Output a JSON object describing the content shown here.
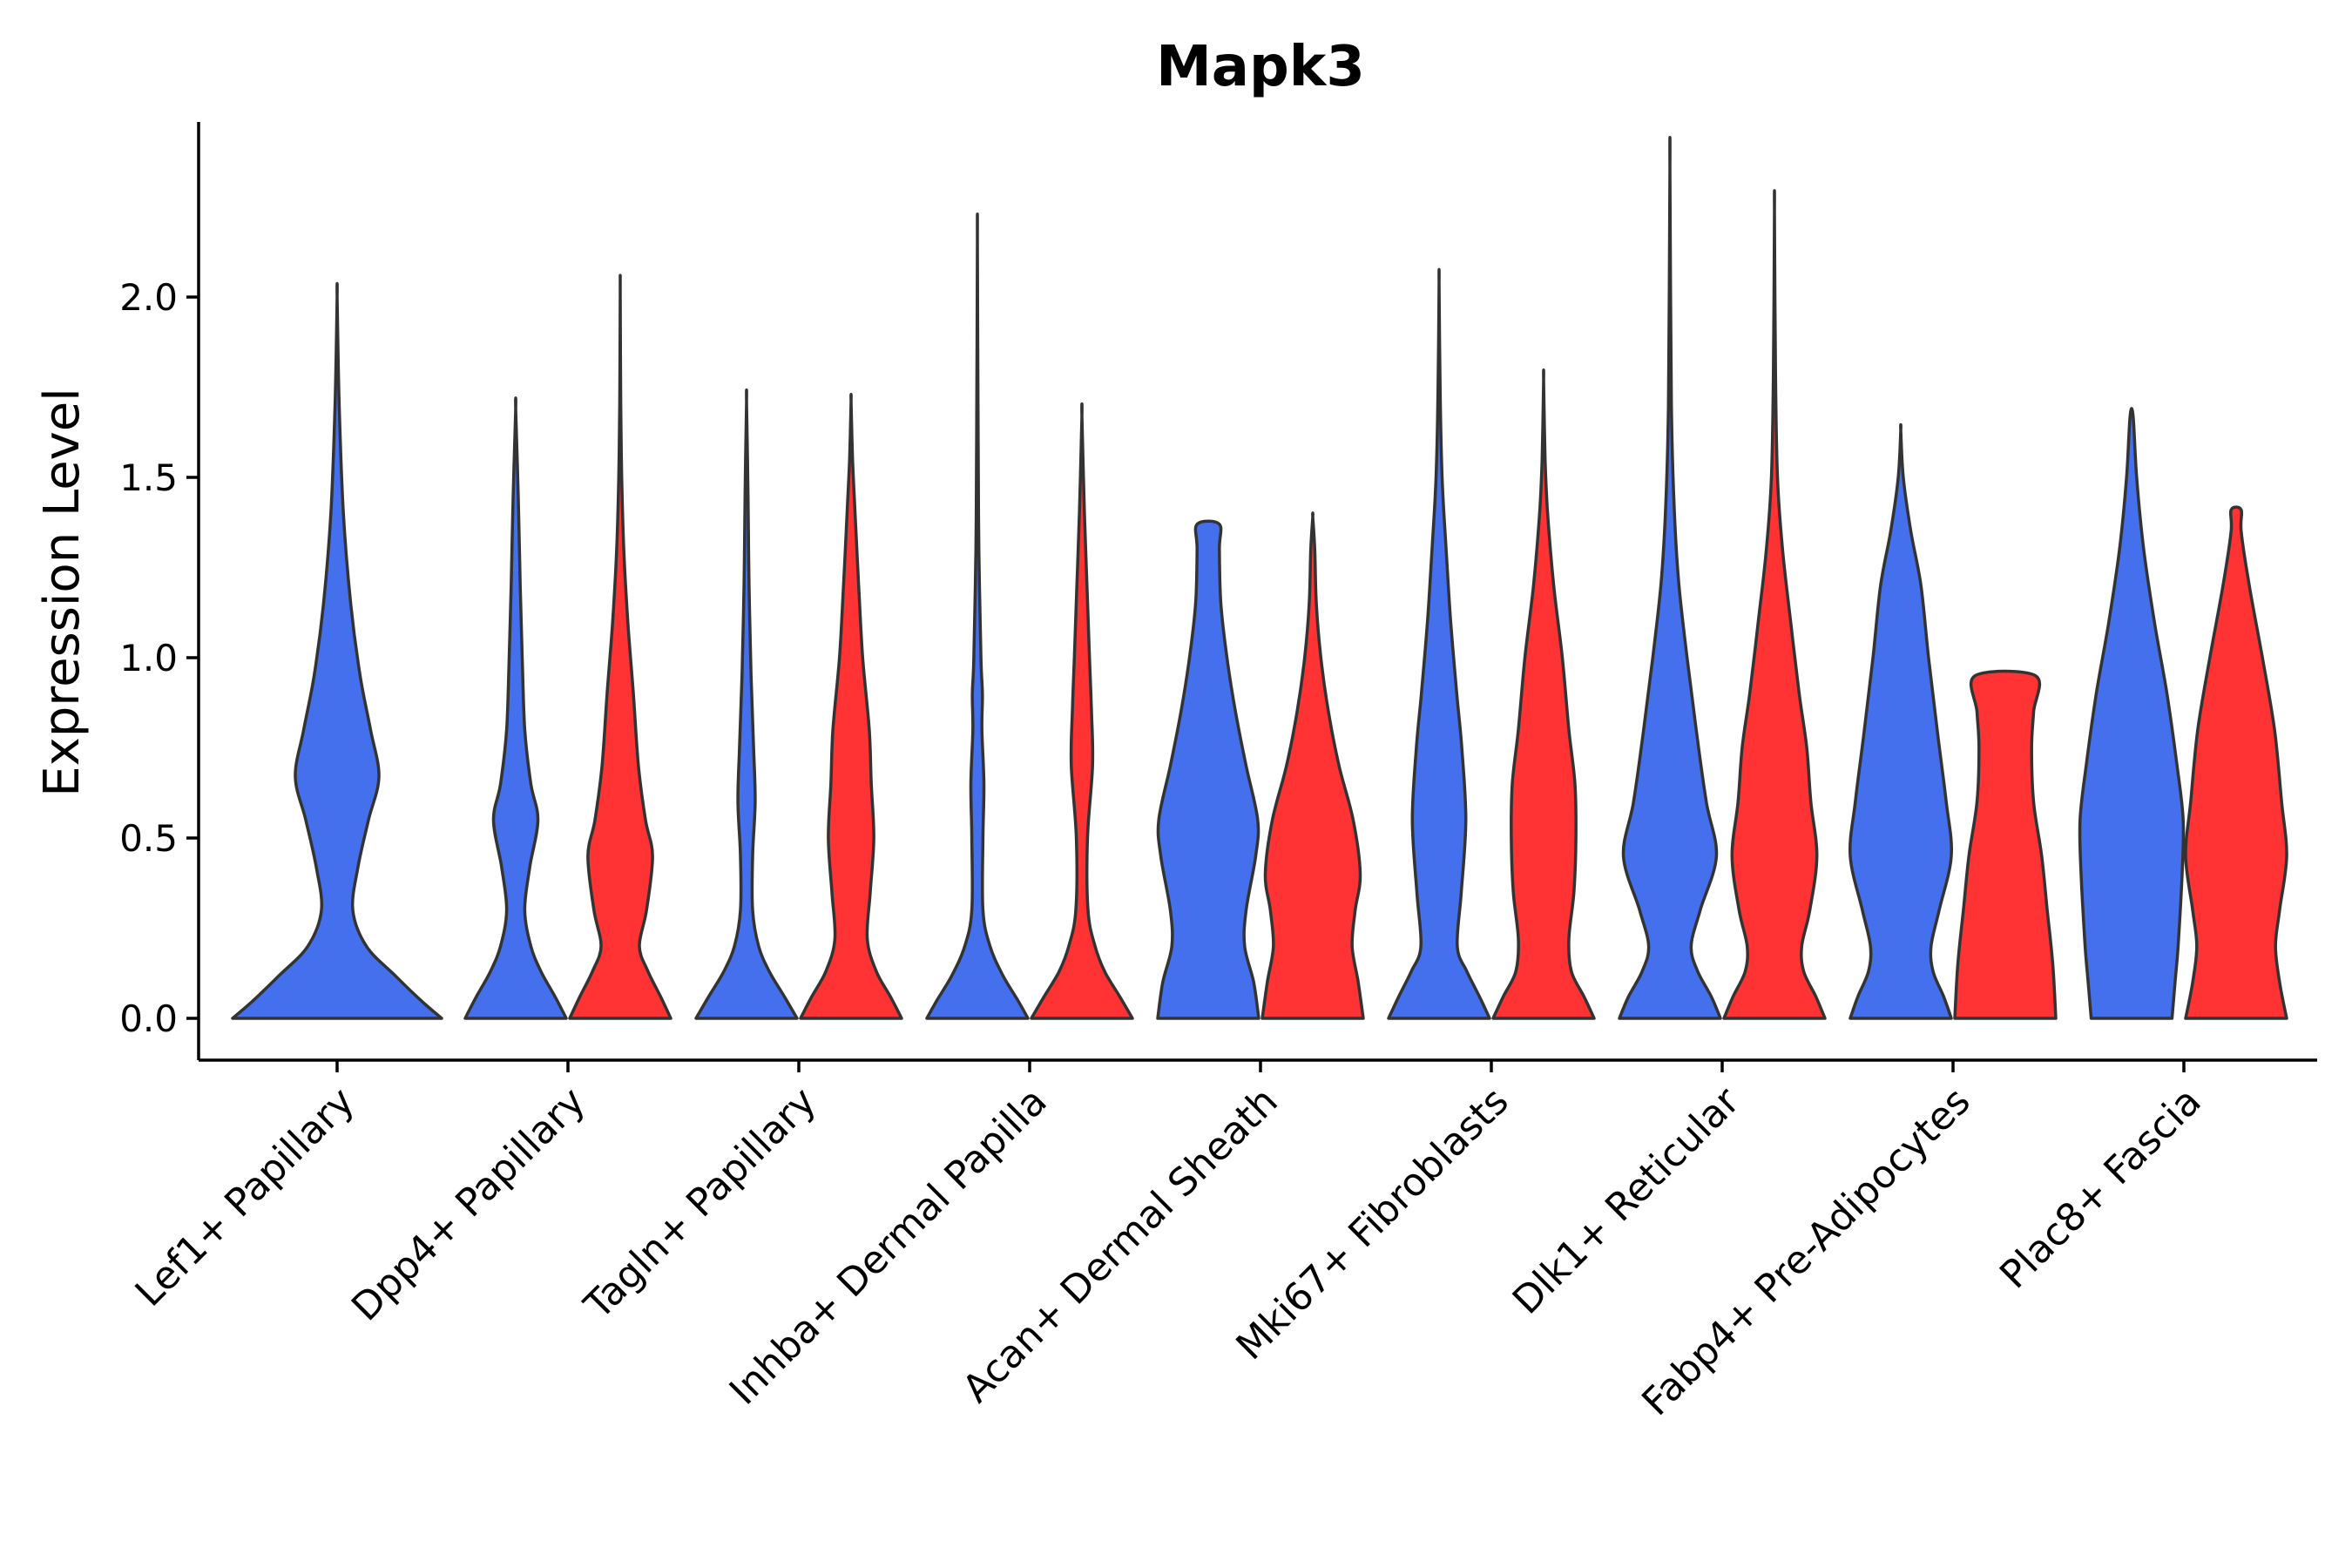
{
  "chart_data": {
    "type": "violin",
    "title": "Mapk3",
    "ylabel": "Expression Level",
    "xlabel": "",
    "ylim": [
      -0.12,
      2.5
    ],
    "yticks": [
      0.0,
      0.5,
      1.0,
      1.5,
      2.0
    ],
    "ytick_labels": [
      "0.0",
      "0.5",
      "1.0",
      "1.5",
      "2.0"
    ],
    "grid": false,
    "legend": "none",
    "colors": [
      "#4470ED",
      "#FF3333"
    ],
    "categories": [
      "Lef1+ Papillary",
      "Dpp4+ Papillary",
      "Tagln+ Papillary",
      "Inhba+ Dermal Papilla",
      "Acan+ Dermal Sheath",
      "Mki67+ Fibroblasts",
      "Dlk1+ Reticular",
      "Fabp4+ Pre-Adipocytes",
      "Plac8+ Fascia"
    ],
    "violins": [
      {
        "category": 0,
        "group": 0,
        "max": 2.0,
        "profile": [
          [
            0,
            1.0
          ],
          [
            0.05,
            0.8
          ],
          [
            0.12,
            0.55
          ],
          [
            0.2,
            0.28
          ],
          [
            0.3,
            0.15
          ],
          [
            0.42,
            0.2
          ],
          [
            0.55,
            0.3
          ],
          [
            0.67,
            0.4
          ],
          [
            0.8,
            0.32
          ],
          [
            0.95,
            0.22
          ],
          [
            1.15,
            0.13
          ],
          [
            1.4,
            0.06
          ],
          [
            1.7,
            0.02
          ],
          [
            2.0,
            0.0
          ]
        ]
      },
      {
        "category": 1,
        "group": 0,
        "max": 1.69,
        "profile": [
          [
            0,
            1.0
          ],
          [
            0.06,
            0.78
          ],
          [
            0.13,
            0.5
          ],
          [
            0.2,
            0.3
          ],
          [
            0.3,
            0.18
          ],
          [
            0.42,
            0.28
          ],
          [
            0.55,
            0.44
          ],
          [
            0.65,
            0.3
          ],
          [
            0.8,
            0.18
          ],
          [
            1.0,
            0.13
          ],
          [
            1.2,
            0.09
          ],
          [
            1.45,
            0.05
          ],
          [
            1.69,
            0.0
          ]
        ]
      },
      {
        "category": 1,
        "group": 1,
        "max": 2.02,
        "profile": [
          [
            0,
            1.0
          ],
          [
            0.06,
            0.8
          ],
          [
            0.13,
            0.55
          ],
          [
            0.2,
            0.38
          ],
          [
            0.3,
            0.52
          ],
          [
            0.45,
            0.64
          ],
          [
            0.55,
            0.5
          ],
          [
            0.7,
            0.36
          ],
          [
            0.9,
            0.26
          ],
          [
            1.1,
            0.15
          ],
          [
            1.3,
            0.07
          ],
          [
            1.5,
            0.03
          ],
          [
            1.7,
            0.01
          ],
          [
            2.02,
            0.0
          ]
        ]
      },
      {
        "category": 2,
        "group": 0,
        "max": 1.71,
        "profile": [
          [
            0,
            1.0
          ],
          [
            0.06,
            0.75
          ],
          [
            0.13,
            0.45
          ],
          [
            0.2,
            0.24
          ],
          [
            0.3,
            0.12
          ],
          [
            0.45,
            0.12
          ],
          [
            0.6,
            0.17
          ],
          [
            0.75,
            0.14
          ],
          [
            0.95,
            0.09
          ],
          [
            1.2,
            0.05
          ],
          [
            1.45,
            0.03
          ],
          [
            1.71,
            0.0
          ]
        ]
      },
      {
        "category": 2,
        "group": 1,
        "max": 1.71,
        "profile": [
          [
            0,
            1.0
          ],
          [
            0.06,
            0.78
          ],
          [
            0.13,
            0.5
          ],
          [
            0.22,
            0.32
          ],
          [
            0.35,
            0.38
          ],
          [
            0.5,
            0.45
          ],
          [
            0.65,
            0.4
          ],
          [
            0.8,
            0.36
          ],
          [
            1.0,
            0.23
          ],
          [
            1.2,
            0.15
          ],
          [
            1.4,
            0.08
          ],
          [
            1.55,
            0.03
          ],
          [
            1.71,
            0.0
          ]
        ]
      },
      {
        "category": 3,
        "group": 0,
        "max": 2.16,
        "profile": [
          [
            0,
            1.0
          ],
          [
            0.05,
            0.8
          ],
          [
            0.12,
            0.5
          ],
          [
            0.2,
            0.25
          ],
          [
            0.3,
            0.11
          ],
          [
            0.5,
            0.11
          ],
          [
            0.65,
            0.13
          ],
          [
            0.8,
            0.09
          ],
          [
            0.9,
            0.1
          ],
          [
            1.0,
            0.07
          ],
          [
            1.3,
            0.03
          ],
          [
            1.6,
            0.015
          ],
          [
            2.16,
            0.0
          ]
        ]
      },
      {
        "category": 3,
        "group": 1,
        "max": 1.67,
        "profile": [
          [
            0,
            1.0
          ],
          [
            0.06,
            0.75
          ],
          [
            0.13,
            0.45
          ],
          [
            0.2,
            0.26
          ],
          [
            0.3,
            0.12
          ],
          [
            0.5,
            0.11
          ],
          [
            0.7,
            0.21
          ],
          [
            0.85,
            0.19
          ],
          [
            1.0,
            0.15
          ],
          [
            1.2,
            0.1
          ],
          [
            1.4,
            0.05
          ],
          [
            1.67,
            0.0
          ]
        ]
      },
      {
        "category": 4,
        "group": 0,
        "max": 1.37,
        "profile": [
          [
            0,
            1.0
          ],
          [
            0.1,
            0.9
          ],
          [
            0.2,
            0.72
          ],
          [
            0.3,
            0.75
          ],
          [
            0.45,
            0.94
          ],
          [
            0.55,
            0.98
          ],
          [
            0.7,
            0.75
          ],
          [
            0.85,
            0.54
          ],
          [
            1.0,
            0.37
          ],
          [
            1.15,
            0.25
          ],
          [
            1.3,
            0.22
          ],
          [
            1.37,
            0.22
          ]
        ]
      },
      {
        "category": 4,
        "group": 1,
        "max": 1.39,
        "profile": [
          [
            0,
            1.0
          ],
          [
            0.1,
            0.9
          ],
          [
            0.2,
            0.78
          ],
          [
            0.3,
            0.84
          ],
          [
            0.4,
            0.94
          ],
          [
            0.55,
            0.8
          ],
          [
            0.7,
            0.52
          ],
          [
            0.85,
            0.31
          ],
          [
            1.0,
            0.16
          ],
          [
            1.15,
            0.07
          ],
          [
            1.3,
            0.04
          ],
          [
            1.39,
            0.0
          ]
        ]
      },
      {
        "category": 5,
        "group": 0,
        "max": 2.04,
        "profile": [
          [
            0,
            1.0
          ],
          [
            0.06,
            0.8
          ],
          [
            0.13,
            0.55
          ],
          [
            0.2,
            0.36
          ],
          [
            0.35,
            0.44
          ],
          [
            0.55,
            0.53
          ],
          [
            0.75,
            0.45
          ],
          [
            0.9,
            0.35
          ],
          [
            1.1,
            0.23
          ],
          [
            1.3,
            0.14
          ],
          [
            1.5,
            0.06
          ],
          [
            1.75,
            0.02
          ],
          [
            2.04,
            0.0
          ]
        ]
      },
      {
        "category": 5,
        "group": 1,
        "max": 1.77,
        "profile": [
          [
            0,
            1.0
          ],
          [
            0.06,
            0.8
          ],
          [
            0.13,
            0.55
          ],
          [
            0.22,
            0.5
          ],
          [
            0.35,
            0.6
          ],
          [
            0.5,
            0.64
          ],
          [
            0.65,
            0.62
          ],
          [
            0.8,
            0.5
          ],
          [
            1.0,
            0.37
          ],
          [
            1.2,
            0.2
          ],
          [
            1.4,
            0.08
          ],
          [
            1.55,
            0.03
          ],
          [
            1.77,
            0.0
          ]
        ]
      },
      {
        "category": 6,
        "group": 0,
        "max": 2.36,
        "profile": [
          [
            0,
            1.0
          ],
          [
            0.06,
            0.82
          ],
          [
            0.13,
            0.55
          ],
          [
            0.2,
            0.42
          ],
          [
            0.3,
            0.6
          ],
          [
            0.45,
            0.92
          ],
          [
            0.6,
            0.72
          ],
          [
            0.8,
            0.52
          ],
          [
            1.0,
            0.34
          ],
          [
            1.2,
            0.18
          ],
          [
            1.4,
            0.09
          ],
          [
            1.7,
            0.03
          ],
          [
            2.36,
            0.0
          ]
        ]
      },
      {
        "category": 6,
        "group": 1,
        "max": 2.24,
        "profile": [
          [
            0,
            1.0
          ],
          [
            0.06,
            0.82
          ],
          [
            0.13,
            0.58
          ],
          [
            0.2,
            0.54
          ],
          [
            0.3,
            0.7
          ],
          [
            0.45,
            0.84
          ],
          [
            0.6,
            0.72
          ],
          [
            0.75,
            0.64
          ],
          [
            0.9,
            0.49
          ],
          [
            1.1,
            0.32
          ],
          [
            1.3,
            0.16
          ],
          [
            1.5,
            0.06
          ],
          [
            1.8,
            0.02
          ],
          [
            2.24,
            0.0
          ]
        ]
      },
      {
        "category": 7,
        "group": 0,
        "max": 1.63,
        "profile": [
          [
            0,
            1.0
          ],
          [
            0.06,
            0.85
          ],
          [
            0.13,
            0.64
          ],
          [
            0.2,
            0.6
          ],
          [
            0.3,
            0.76
          ],
          [
            0.45,
            1.0
          ],
          [
            0.6,
            0.9
          ],
          [
            0.8,
            0.72
          ],
          [
            1.0,
            0.55
          ],
          [
            1.2,
            0.4
          ],
          [
            1.35,
            0.2
          ],
          [
            1.5,
            0.05
          ],
          [
            1.63,
            0.0
          ]
        ]
      },
      {
        "category": 7,
        "group": 1,
        "max": 0.95,
        "profile": [
          [
            0,
            1.0
          ],
          [
            0.15,
            0.94
          ],
          [
            0.3,
            0.83
          ],
          [
            0.45,
            0.72
          ],
          [
            0.6,
            0.56
          ],
          [
            0.75,
            0.52
          ],
          [
            0.85,
            0.56
          ],
          [
            0.95,
            0.6
          ]
        ]
      },
      {
        "category": 8,
        "group": 0,
        "max": 1.67,
        "profile": [
          [
            0,
            0.8
          ],
          [
            0.1,
            0.86
          ],
          [
            0.2,
            0.92
          ],
          [
            0.4,
            1.0
          ],
          [
            0.55,
            1.02
          ],
          [
            0.7,
            0.9
          ],
          [
            0.9,
            0.7
          ],
          [
            1.1,
            0.45
          ],
          [
            1.3,
            0.24
          ],
          [
            1.5,
            0.1
          ],
          [
            1.67,
            0.03
          ]
        ]
      },
      {
        "category": 8,
        "group": 1,
        "max": 1.41,
        "profile": [
          [
            0,
            1.0
          ],
          [
            0.1,
            0.86
          ],
          [
            0.2,
            0.78
          ],
          [
            0.3,
            0.86
          ],
          [
            0.45,
            1.0
          ],
          [
            0.6,
            0.9
          ],
          [
            0.8,
            0.76
          ],
          [
            1.0,
            0.52
          ],
          [
            1.2,
            0.26
          ],
          [
            1.35,
            0.1
          ],
          [
            1.41,
            0.1
          ]
        ]
      }
    ]
  }
}
